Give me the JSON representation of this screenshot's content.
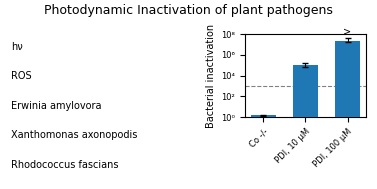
{
  "chart_data": {
    "type": "bar",
    "title": "Photodynamic Inactivation of plant pathogens",
    "categories": [
      "Co -/-",
      "PDI, 10 μM",
      "PDI, 100 μM"
    ],
    "values": [
      1.5,
      100000,
      22000000
    ],
    "error_low": [
      0.3,
      30000,
      5000000
    ],
    "error_high": [
      0.3,
      80000,
      20000000
    ],
    "y_label": "Bacterial inactivation",
    "log": "y",
    "ylim": [
      1,
      100000000
    ],
    "yticks": [
      {
        "value": 1,
        "label": "10⁰"
      },
      {
        "value": 100,
        "label": "10²"
      },
      {
        "value": 10000,
        "label": "10⁴"
      },
      {
        "value": 1000000,
        "label": "10⁶"
      },
      {
        "value": 100000000,
        "label": "10⁸"
      }
    ],
    "reference_line": 1000,
    "annotations": [
      {
        "text": ">",
        "category": "PDI, 100 μM"
      },
      {
        "text": "hν"
      },
      {
        "text": "ROS"
      },
      {
        "text": "Erwinia amylovora"
      },
      {
        "text": "Xanthomonas axonopodis"
      },
      {
        "text": "Rhodococcus fascians"
      }
    ],
    "grid": false
  }
}
